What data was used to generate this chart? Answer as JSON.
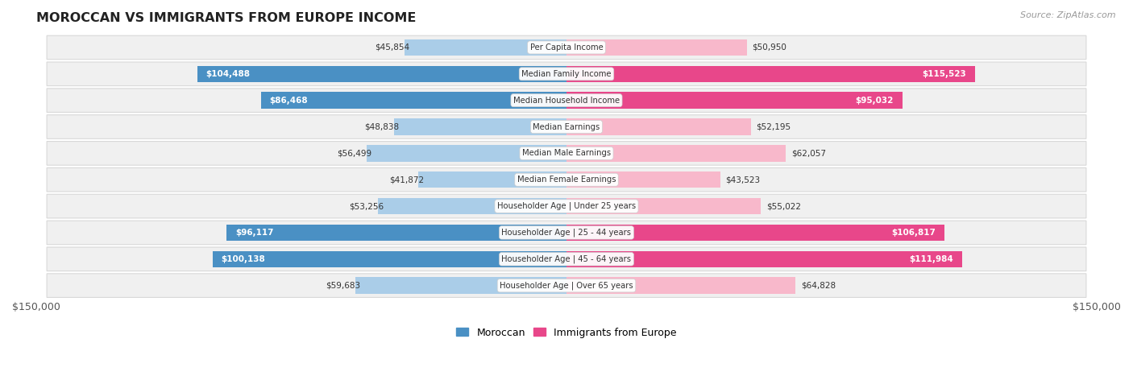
{
  "title": "MOROCCAN VS IMMIGRANTS FROM EUROPE INCOME",
  "source": "Source: ZipAtlas.com",
  "categories": [
    "Per Capita Income",
    "Median Family Income",
    "Median Household Income",
    "Median Earnings",
    "Median Male Earnings",
    "Median Female Earnings",
    "Householder Age | Under 25 years",
    "Householder Age | 25 - 44 years",
    "Householder Age | 45 - 64 years",
    "Householder Age | Over 65 years"
  ],
  "moroccan_values": [
    45854,
    104488,
    86468,
    48838,
    56499,
    41872,
    53256,
    96117,
    100138,
    59683
  ],
  "europe_values": [
    50950,
    115523,
    95032,
    52195,
    62057,
    43523,
    55022,
    106817,
    111984,
    64828
  ],
  "moroccan_labels": [
    "$45,854",
    "$104,488",
    "$86,468",
    "$48,838",
    "$56,499",
    "$41,872",
    "$53,256",
    "$96,117",
    "$100,138",
    "$59,683"
  ],
  "europe_labels": [
    "$50,950",
    "$115,523",
    "$95,032",
    "$52,195",
    "$62,057",
    "$43,523",
    "$55,022",
    "$106,817",
    "$111,984",
    "$64,828"
  ],
  "moroccan_light": "#aacde8",
  "moroccan_dark": "#4a90c4",
  "europe_light": "#f8b8cb",
  "europe_dark": "#e8478a",
  "label_threshold": 70000,
  "max_value": 150000,
  "bar_height": 0.62,
  "row_bg_color": "#f0f0f0",
  "row_border_color": "#d8d8d8",
  "legend_moroccan": "Moroccan",
  "legend_europe": "Immigrants from Europe",
  "axis_label": "$150,000"
}
